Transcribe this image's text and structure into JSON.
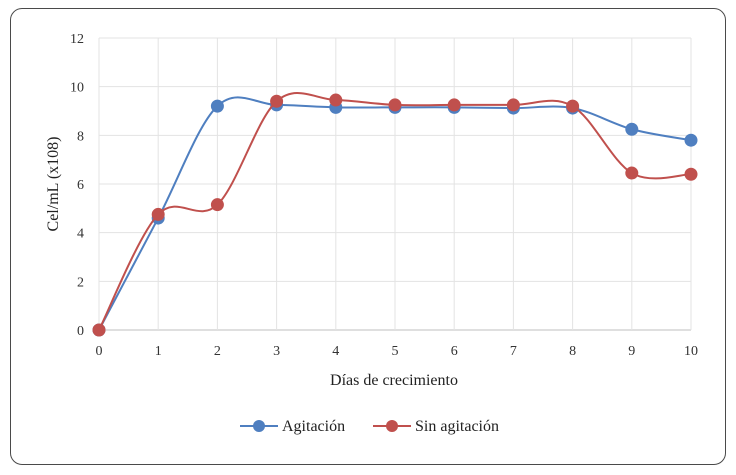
{
  "chart_data": {
    "type": "line",
    "xlabel": "Días de crecimiento",
    "ylabel": "Cel/mL (x108)",
    "x": [
      0,
      1,
      2,
      3,
      4,
      5,
      6,
      7,
      8,
      9,
      10
    ],
    "xlim": [
      0,
      10
    ],
    "ylim": [
      0,
      12
    ],
    "yticks": [
      0,
      2,
      4,
      6,
      8,
      10,
      12
    ],
    "grid": true,
    "legend_position": "bottom",
    "smoothed": true,
    "series": [
      {
        "name": "Agitación",
        "color": "#4f7fc0",
        "values": [
          0,
          4.6,
          9.2,
          9.25,
          9.15,
          9.15,
          9.15,
          9.12,
          9.12,
          8.25,
          7.8
        ]
      },
      {
        "name": "Sin agitación",
        "color": "#c0504d",
        "values": [
          0,
          4.75,
          5.15,
          9.4,
          9.45,
          9.25,
          9.25,
          9.25,
          9.2,
          6.45,
          6.4
        ]
      }
    ]
  }
}
